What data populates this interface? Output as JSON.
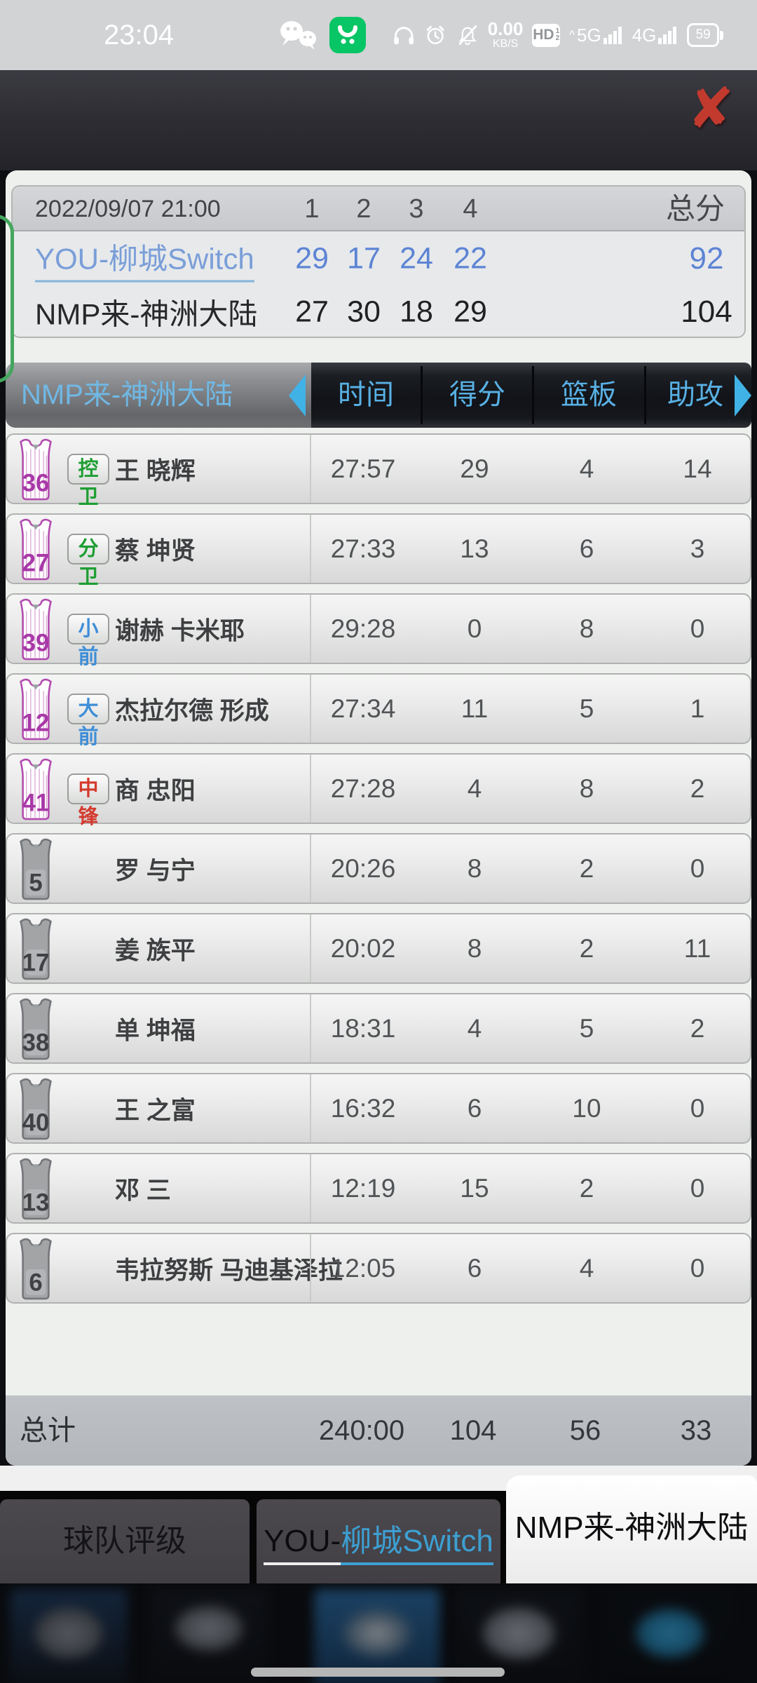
{
  "status_bar": {
    "time": "23:04",
    "speed_value": "0.00",
    "speed_unit": "KB/S",
    "hd_label": "HD",
    "hd_sub_1": "1",
    "hd_sub_2": "2",
    "net_5g": "5G",
    "net_4g": "4G",
    "caret": "^",
    "battery_percent": "59"
  },
  "header": {
    "close_icon_glyph": "✘"
  },
  "scoreboard": {
    "date": "2022/09/07 21:00",
    "quarters": [
      "1",
      "2",
      "3",
      "4"
    ],
    "total_label": "总分",
    "teams": [
      {
        "name": "YOU-柳城Switch",
        "scores": [
          29,
          17,
          24,
          22
        ],
        "total": 92
      },
      {
        "name": "NMP来-神洲大陆",
        "scores": [
          27,
          30,
          18,
          29
        ],
        "total": 104
      }
    ]
  },
  "stats_table": {
    "team_name": "NMP来-神洲大陆",
    "columns": [
      "时间",
      "得分",
      "篮板",
      "助攻"
    ],
    "players": [
      {
        "number": "36",
        "position": "控卫",
        "pos_color": "green",
        "name": "王 晓辉",
        "time": "27:57",
        "points": "29",
        "rebounds": "4",
        "assists": "14"
      },
      {
        "number": "27",
        "position": "分卫",
        "pos_color": "green",
        "name": "蔡 坤贤",
        "time": "27:33",
        "points": "13",
        "rebounds": "6",
        "assists": "3"
      },
      {
        "number": "39",
        "position": "小前",
        "pos_color": "blue",
        "name": "谢赫 卡米耶",
        "time": "29:28",
        "points": "0",
        "rebounds": "8",
        "assists": "0"
      },
      {
        "number": "12",
        "position": "大前",
        "pos_color": "blue",
        "name": "杰拉尔德 形成",
        "time": "27:34",
        "points": "11",
        "rebounds": "5",
        "assists": "1"
      },
      {
        "number": "41",
        "position": "中锋",
        "pos_color": "red",
        "name": "商 忠阳",
        "time": "27:28",
        "points": "4",
        "rebounds": "8",
        "assists": "2"
      },
      {
        "number": "5",
        "position": null,
        "name": "罗 与宁",
        "time": "20:26",
        "points": "8",
        "rebounds": "2",
        "assists": "0"
      },
      {
        "number": "17",
        "position": null,
        "name": "姜 族平",
        "time": "20:02",
        "points": "8",
        "rebounds": "2",
        "assists": "11"
      },
      {
        "number": "38",
        "position": null,
        "name": "单 坤福",
        "time": "18:31",
        "points": "4",
        "rebounds": "5",
        "assists": "2"
      },
      {
        "number": "40",
        "position": null,
        "name": "王 之富",
        "time": "16:32",
        "points": "6",
        "rebounds": "10",
        "assists": "0"
      },
      {
        "number": "13",
        "position": null,
        "name": "邓 三",
        "time": "12:19",
        "points": "15",
        "rebounds": "2",
        "assists": "0"
      },
      {
        "number": "6",
        "position": null,
        "name": "韦拉努斯 马迪基泽拉",
        "time": "12:05",
        "points": "6",
        "rebounds": "4",
        "assists": "0"
      }
    ],
    "totals": {
      "label": "总计",
      "time": "240:00",
      "points": "104",
      "rebounds": "56",
      "assists": "33"
    }
  },
  "tabs": [
    {
      "label": "球队评级"
    },
    {
      "prefix": "YOU-",
      "suffix": "柳城Switch"
    },
    {
      "label": "NMP来-神洲大陆",
      "active": true
    }
  ],
  "colors": {
    "accent_blue": "#3d9fd2",
    "score_blue": "#5d84d4",
    "starter_jersey": "#a838a8",
    "pos_green": "#1e9e33",
    "pos_blue": "#3e8ed8",
    "pos_red": "#d43a2e",
    "close_red": "#c23a2e",
    "bracket_green": "#44a65e"
  }
}
